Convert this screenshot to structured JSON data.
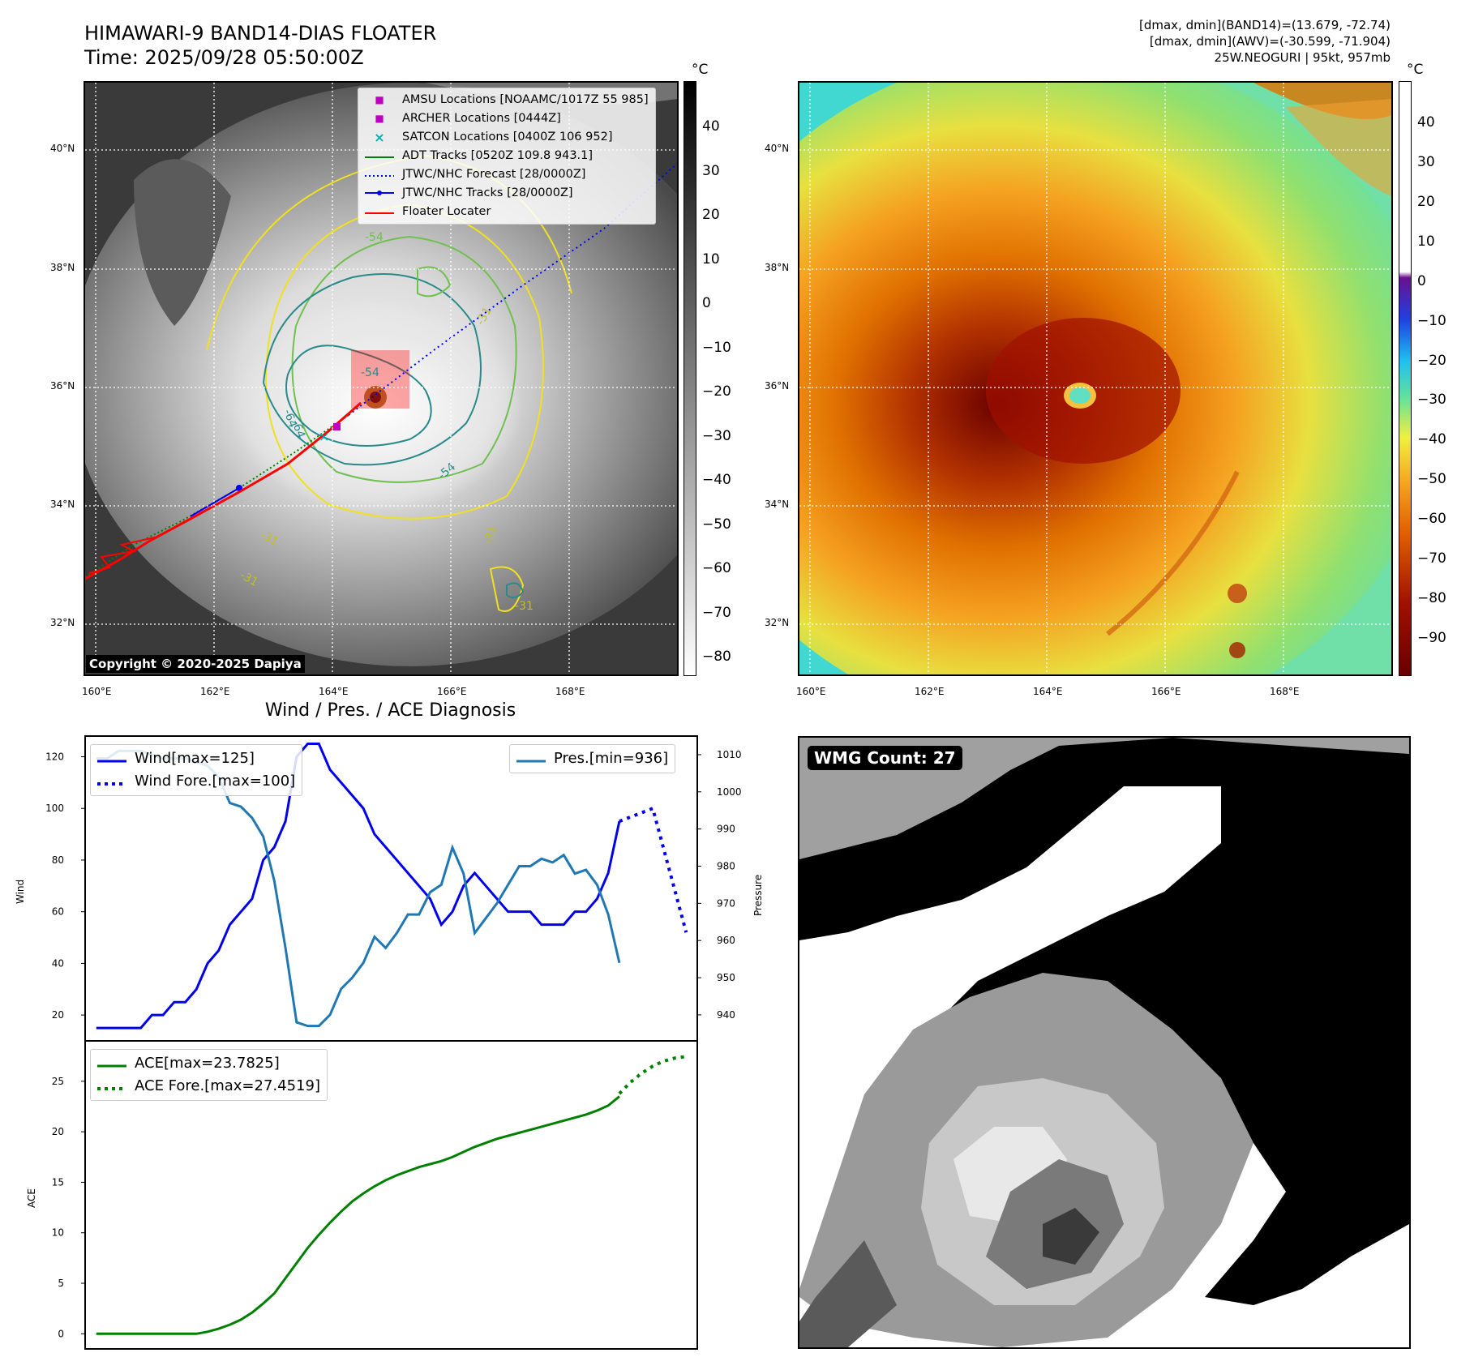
{
  "header": {
    "title_line1": "HIMAWARI-9 BAND14-DIAS FLOATER",
    "title_line2": "Time: 2025/09/28 05:50:00Z",
    "info_line1": "[dmax, dmin](BAND14)=(13.679, -72.74)",
    "info_line2": "[dmax, dmin](AWV)=(-30.599, -71.904)",
    "info_line3": "25W.NEOGURI | 95kt, 957mb"
  },
  "map": {
    "lat_labels": [
      "40°N",
      "38°N",
      "36°N",
      "34°N",
      "32°N"
    ],
    "lon_labels": [
      "160°E",
      "162°E",
      "164°E",
      "166°E",
      "168°E"
    ],
    "copyright": "Copyright © 2020-2025 Dapiya",
    "contour_labels": [
      "-54",
      "-64",
      "-64",
      "-54",
      "-31",
      "-31",
      "-31",
      "-31",
      "-31",
      "-54"
    ],
    "legend": [
      {
        "label": "AMSU Locations [NOAAMC/1017Z 55 985]",
        "symbol": "■",
        "color": "#c000c0"
      },
      {
        "label": "ARCHER Locations [0444Z]",
        "symbol": "■",
        "color": "#c000c0"
      },
      {
        "label": "SATCON Locations [0400Z 106 952]",
        "symbol": "×",
        "color": "#00b0b0"
      },
      {
        "label": "ADT Tracks [0520Z 109.8 943.1]",
        "symbol": "solid",
        "color": "#008000"
      },
      {
        "label": "JTWC/NHC Forecast [28/0000Z]",
        "symbol": "dotted",
        "color": "#0000ff"
      },
      {
        "label": "JTWC/NHC Tracks [28/0000Z]",
        "symbol": "dotline",
        "color": "#0000ff"
      },
      {
        "label": "Floater Locater",
        "symbol": "solid",
        "color": "#ff0000"
      }
    ]
  },
  "colorbar_left": {
    "unit": "°C",
    "ticks": [
      "40",
      "30",
      "20",
      "10",
      "0",
      "−10",
      "−20",
      "−30",
      "−40",
      "−50",
      "−60",
      "−70",
      "−80"
    ]
  },
  "colorbar_right": {
    "unit": "°C",
    "ticks": [
      "40",
      "30",
      "20",
      "10",
      "0",
      "−10",
      "−20",
      "−30",
      "−40",
      "−50",
      "−60",
      "−70",
      "−80",
      "−90"
    ]
  },
  "wmg": {
    "label": "WMG Count: 27"
  },
  "colors": {
    "wind": "#0000ee",
    "pressure": "#1f77b4",
    "ace": "#008000"
  },
  "chart_data": [
    {
      "type": "line",
      "title": "Wind / Pres. / ACE Diagnosis",
      "ylabel": "Wind",
      "y2label": "Pressure",
      "ylim": [
        10,
        128
      ],
      "y2lim": [
        933,
        1015
      ],
      "yticks": [
        20,
        40,
        60,
        80,
        100,
        120
      ],
      "y2ticks": [
        940,
        950,
        960,
        970,
        980,
        990,
        1000,
        1010
      ],
      "series": [
        {
          "name": "Wind[max=125]",
          "axis": "left",
          "style": "solid",
          "x": [
            0,
            1,
            2,
            3,
            4,
            5,
            6,
            7,
            8,
            9,
            10,
            11,
            12,
            13,
            14,
            15,
            16,
            17,
            18,
            19,
            20,
            21,
            22,
            23,
            24,
            25,
            26,
            27,
            28,
            29,
            30,
            31,
            32,
            33,
            34,
            35,
            36,
            37,
            38,
            39,
            40,
            41,
            42,
            43,
            44,
            45,
            46,
            47
          ],
          "values": [
            15,
            15,
            15,
            15,
            15,
            20,
            20,
            25,
            25,
            30,
            40,
            45,
            55,
            60,
            65,
            80,
            85,
            95,
            120,
            125,
            125,
            115,
            110,
            105,
            100,
            90,
            85,
            80,
            75,
            70,
            65,
            55,
            60,
            70,
            75,
            70,
            65,
            60,
            60,
            60,
            55,
            55,
            55,
            60,
            60,
            65,
            75,
            95
          ]
        },
        {
          "name": "Wind Fore.[max=100]",
          "axis": "left",
          "style": "dotted",
          "x": [
            47,
            50,
            53
          ],
          "values": [
            95,
            100,
            52
          ]
        },
        {
          "name": "Pres.[min=936]",
          "axis": "right",
          "style": "solid",
          "x": [
            0,
            1,
            2,
            3,
            4,
            5,
            6,
            7,
            8,
            9,
            10,
            11,
            12,
            13,
            14,
            15,
            16,
            17,
            18,
            19,
            20,
            21,
            22,
            23,
            24,
            25,
            26,
            27,
            28,
            29,
            30,
            31,
            32,
            33,
            34,
            35,
            36,
            37,
            38,
            39,
            40,
            41,
            42,
            43,
            44,
            45,
            46,
            47
          ],
          "values": [
            1009,
            1009,
            1011,
            1011,
            1011,
            1010,
            1009,
            1009,
            1009,
            1008,
            1007,
            1004,
            997,
            996,
            993,
            988,
            976,
            958,
            938,
            937,
            937,
            940,
            947,
            950,
            954,
            961,
            958,
            962,
            967,
            967,
            973,
            975,
            985,
            978,
            962,
            966,
            970,
            975,
            980,
            980,
            982,
            981,
            983,
            978,
            979,
            975,
            967,
            954
          ]
        }
      ]
    },
    {
      "type": "line",
      "ylabel": "ACE",
      "ylim": [
        -1.5,
        29
      ],
      "yticks": [
        0,
        5,
        10,
        15,
        20,
        25
      ],
      "series": [
        {
          "name": "ACE[max=23.7825]",
          "style": "solid",
          "x": [
            0,
            1,
            2,
            3,
            4,
            5,
            6,
            7,
            8,
            9,
            10,
            11,
            12,
            13,
            14,
            15,
            16,
            17,
            18,
            19,
            20,
            21,
            22,
            23,
            24,
            25,
            26,
            27,
            28,
            29,
            30,
            31,
            32,
            33,
            34,
            35,
            36,
            37,
            38,
            39,
            40,
            41,
            42,
            43,
            44,
            45,
            46,
            47
          ],
          "values": [
            0,
            0,
            0,
            0,
            0,
            0,
            0,
            0,
            0,
            0,
            0.2,
            0.5,
            0.9,
            1.4,
            2.1,
            3.0,
            4.0,
            5.5,
            7.0,
            8.5,
            9.8,
            11.0,
            12.1,
            13.1,
            13.9,
            14.6,
            15.2,
            15.7,
            16.1,
            16.5,
            16.8,
            17.1,
            17.5,
            18.0,
            18.5,
            18.9,
            19.3,
            19.6,
            19.9,
            20.2,
            20.5,
            20.8,
            21.1,
            21.4,
            21.7,
            22.1,
            22.6,
            23.5
          ]
        },
        {
          "name": "ACE Fore.[max=27.4519]",
          "style": "dotted",
          "x": [
            47,
            48,
            49,
            50,
            51,
            52,
            53
          ],
          "values": [
            23.78,
            24.9,
            25.8,
            26.5,
            27.0,
            27.3,
            27.45
          ]
        }
      ]
    }
  ]
}
